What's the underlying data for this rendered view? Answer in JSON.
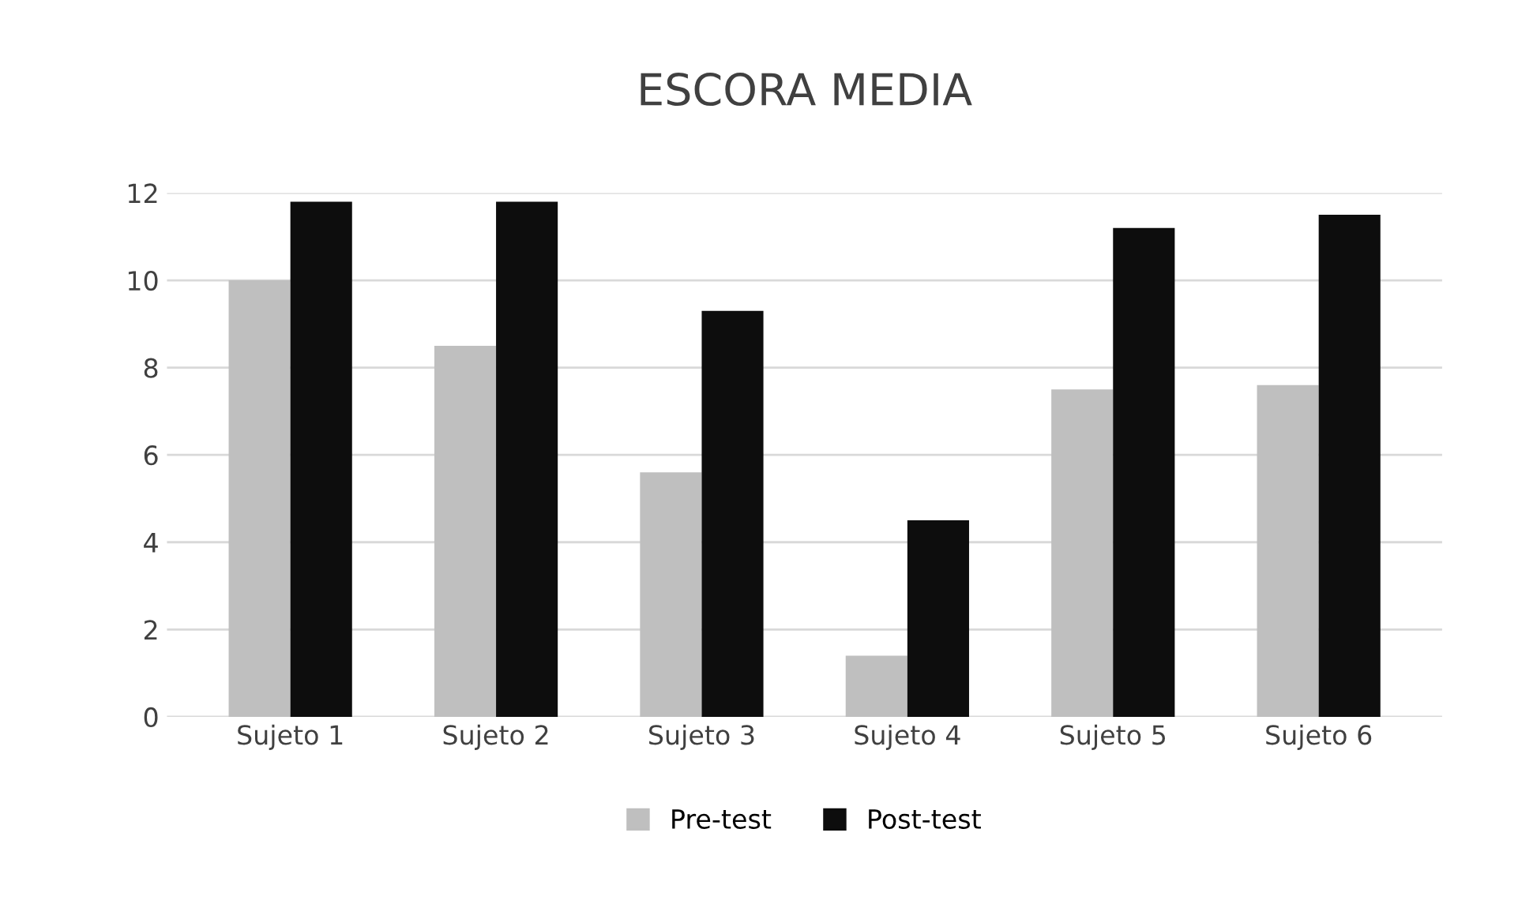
{
  "chart_data": {
    "type": "bar",
    "title": "ESCORA MEDIA",
    "categories": [
      "Sujeto 1",
      "Sujeto 2",
      "Sujeto 3",
      "Sujeto 4",
      "Sujeto 5",
      "Sujeto 6"
    ],
    "series": [
      {
        "name": "Pre-test",
        "color": "#bfbfbf",
        "values": [
          10,
          8.5,
          5.6,
          1.4,
          7.5,
          7.6
        ]
      },
      {
        "name": "Post-test",
        "color": "#0d0d0d",
        "values": [
          11.8,
          11.8,
          9.3,
          4.5,
          11.2,
          11.5
        ]
      }
    ],
    "ylim": [
      0,
      12
    ],
    "yticks": [
      0,
      2,
      4,
      6,
      8,
      10,
      12
    ],
    "grid": "y",
    "legend": "bottom"
  }
}
